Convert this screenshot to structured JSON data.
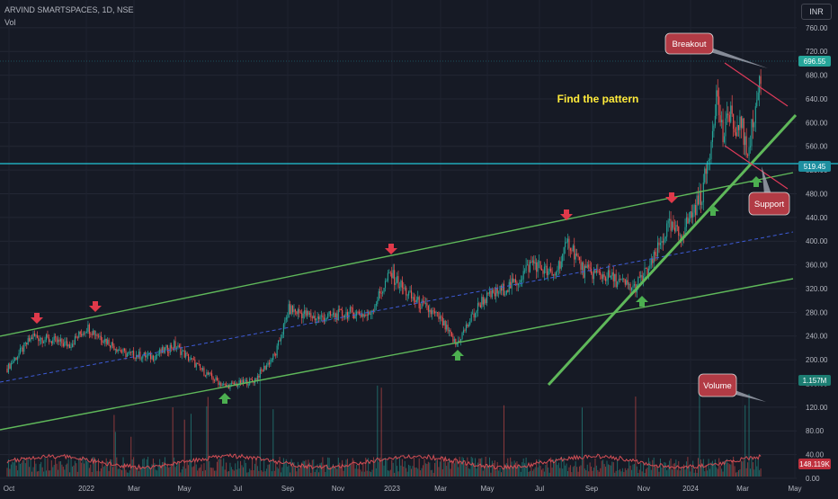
{
  "header": {
    "symbol": "ARVIND SMARTSPACES, 1D, NSE",
    "volume_label": "Vol",
    "currency_button": "INR"
  },
  "chart_data": {
    "type": "candlestick",
    "title": "ARVIND SMARTSPACES, 1D, NSE",
    "price_axis": {
      "ticks": [
        "760.00",
        "720.00",
        "680.00",
        "640.00",
        "600.00",
        "560.00",
        "520.00",
        "480.00",
        "440.00",
        "400.00",
        "360.00",
        "320.00",
        "280.00",
        "240.00",
        "200.00",
        "160.00",
        "120.00",
        "80.00",
        "40.00",
        "0.00"
      ],
      "range": [
        0,
        760
      ]
    },
    "time_axis": {
      "ticks": [
        "Oct",
        "2022",
        "Mar",
        "May",
        "Jul",
        "Sep",
        "Nov",
        "2023",
        "Mar",
        "May",
        "Jul",
        "Sep",
        "Nov",
        "2024",
        "Mar",
        "May"
      ]
    },
    "price_path": [
      {
        "t": "2021-10-01",
        "close": 185
      },
      {
        "t": "2021-11-01",
        "close": 240
      },
      {
        "t": "2021-12-15",
        "close": 225
      },
      {
        "t": "2022-01-05",
        "close": 255
      },
      {
        "t": "2022-02-20",
        "close": 210
      },
      {
        "t": "2022-03-25",
        "close": 205
      },
      {
        "t": "2022-04-20",
        "close": 225
      },
      {
        "t": "2022-05-25",
        "close": 180
      },
      {
        "t": "2022-06-20",
        "close": 155
      },
      {
        "t": "2022-07-25",
        "close": 165
      },
      {
        "t": "2022-08-20",
        "close": 210
      },
      {
        "t": "2022-09-05",
        "close": 285
      },
      {
        "t": "2022-10-10",
        "close": 270
      },
      {
        "t": "2022-11-20",
        "close": 280
      },
      {
        "t": "2022-12-10",
        "close": 275
      },
      {
        "t": "2023-01-05",
        "close": 345
      },
      {
        "t": "2023-01-30",
        "close": 305
      },
      {
        "t": "2023-03-05",
        "close": 270
      },
      {
        "t": "2023-03-25",
        "close": 225
      },
      {
        "t": "2023-04-25",
        "close": 300
      },
      {
        "t": "2023-06-05",
        "close": 330
      },
      {
        "t": "2023-06-25",
        "close": 365
      },
      {
        "t": "2023-07-20",
        "close": 340
      },
      {
        "t": "2023-08-08",
        "close": 400
      },
      {
        "t": "2023-08-25",
        "close": 350
      },
      {
        "t": "2023-09-25",
        "close": 340
      },
      {
        "t": "2023-10-25",
        "close": 320
      },
      {
        "t": "2023-11-15",
        "close": 360
      },
      {
        "t": "2023-12-05",
        "close": 425
      },
      {
        "t": "2023-12-20",
        "close": 410
      },
      {
        "t": "2024-01-15",
        "close": 480
      },
      {
        "t": "2024-01-25",
        "close": 560
      },
      {
        "t": "2024-02-01",
        "close": 650
      },
      {
        "t": "2024-02-10",
        "close": 570
      },
      {
        "t": "2024-02-18",
        "close": 630
      },
      {
        "t": "2024-02-25",
        "close": 560
      },
      {
        "t": "2024-03-01",
        "close": 620
      },
      {
        "t": "2024-03-08",
        "close": 545
      },
      {
        "t": "2024-03-18",
        "close": 610
      },
      {
        "t": "2024-03-27",
        "close": 696.55
      }
    ],
    "last_price": "696.55",
    "horizontal_line": "519.45",
    "volume_last": "1.157M",
    "volume_ma": "148.119K",
    "annotations": {
      "breakout": "Breakout",
      "support": "Support",
      "volume": "Volume",
      "pattern_text": "Find the pattern"
    },
    "colors": {
      "up": "#26a69a",
      "down": "#ef5350",
      "channel": "#5fb85a",
      "level_line": "#22c5d8",
      "last_price_bg": "#26a69a",
      "volume_ma_line": "#d14e55",
      "annotation_bg": "#b23b45",
      "arrow_down": "#e0394a",
      "arrow_up": "#4caf50",
      "pattern_text": "#ffeb3b",
      "background": "#161a25"
    }
  }
}
